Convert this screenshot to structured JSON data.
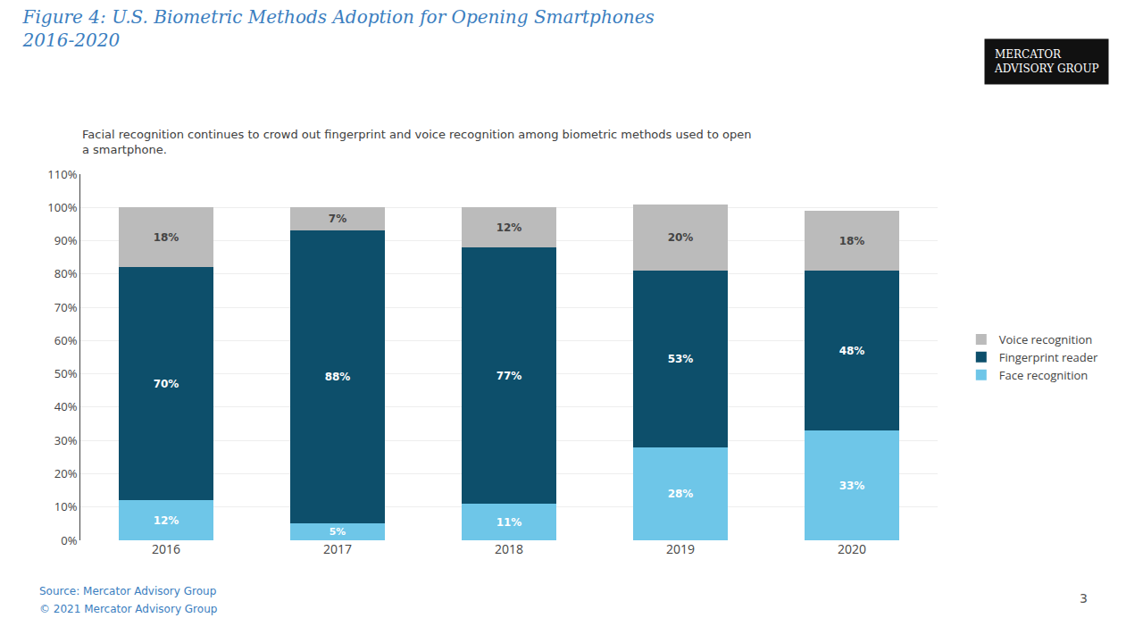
{
  "chart_data": {
    "type": "bar",
    "title": "Figure 4: U.S. Biometric Methods Adoption for Opening Smartphones\n2016-2020",
    "subtitle": "Facial recognition continues to crowd out fingerprint and voice recognition among biometric methods used to open\na smartphone.",
    "categories": [
      "2016",
      "2017",
      "2018",
      "2019",
      "2020"
    ],
    "series": [
      {
        "name": "Face recognition",
        "color": "#6EC6E8",
        "values": [
          12,
          5,
          11,
          28,
          33
        ],
        "value_labels": [
          "12%",
          "5%",
          "11%",
          "28%",
          "33%"
        ]
      },
      {
        "name": "Fingerprint reader",
        "color": "#0D4F6B",
        "values": [
          70,
          88,
          77,
          53,
          48
        ],
        "value_labels": [
          "70%",
          "88%",
          "77%",
          "53%",
          "48%"
        ]
      },
      {
        "name": "Voice recognition",
        "color": "#BBBBBB",
        "values": [
          18,
          7,
          12,
          20,
          18
        ],
        "value_labels": [
          "18%",
          "7%",
          "12%",
          "20%",
          "18%"
        ]
      }
    ],
    "stacked": true,
    "data_labels": true,
    "ylim": [
      0,
      110
    ],
    "yticks": [
      {
        "value": 0,
        "label": "0%"
      },
      {
        "value": 10,
        "label": "10%"
      },
      {
        "value": 20,
        "label": "20%"
      },
      {
        "value": 30,
        "label": "30%"
      },
      {
        "value": 40,
        "label": "40%"
      },
      {
        "value": 50,
        "label": "50%"
      },
      {
        "value": 60,
        "label": "60%"
      },
      {
        "value": 70,
        "label": "70%"
      },
      {
        "value": 80,
        "label": "80%"
      },
      {
        "value": 90,
        "label": "90%"
      },
      {
        "value": 100,
        "label": "100%"
      },
      {
        "value": 110,
        "label": "110%"
      }
    ],
    "grid": true,
    "legend": "right",
    "annotations": [
      "Source: Mercator Advisory Group",
      "© 2021 Mercator Advisory Group",
      "3",
      "MERCATOR",
      "ADVISORY GROUP"
    ]
  }
}
